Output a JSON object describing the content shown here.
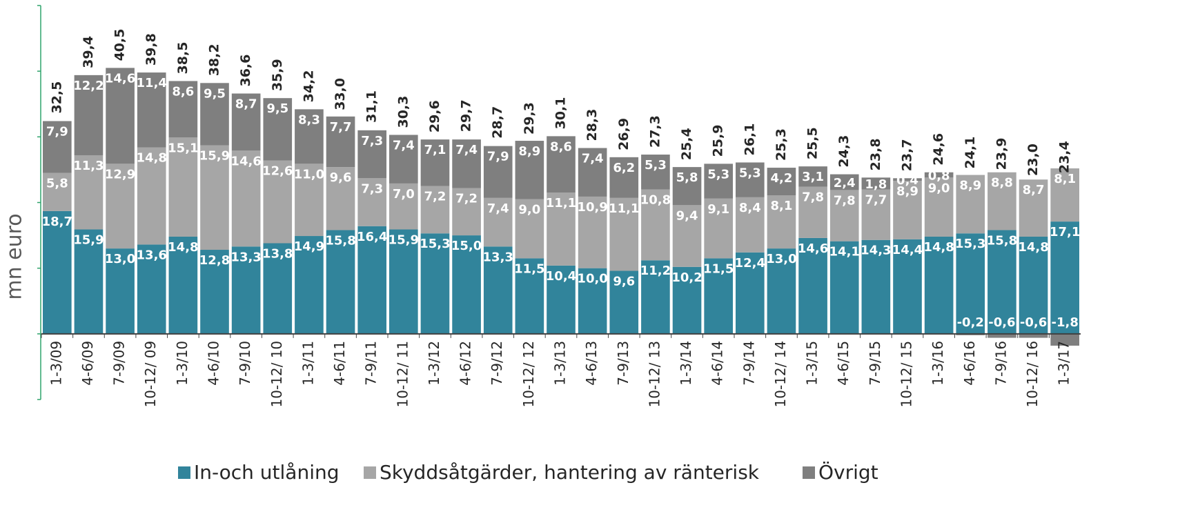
{
  "chart_data": {
    "type": "stacked_bar",
    "y_label": "mn euro",
    "categories": [
      "1-3/09",
      "4-6/09",
      "7-9/09",
      "10-12/ 09",
      "1-3/10",
      "4-6/10",
      "7-9/10",
      "10-12/ 10",
      "1-3/11",
      "4-6/11",
      "7-9/11",
      "10-12/ 11",
      "1-3/12",
      "4-6/12",
      "7-9/12",
      "10-12/ 12",
      "1-3/13",
      "4-6/13",
      "7-9/13",
      "10-12/ 13",
      "1-3/14",
      "4-6/14",
      "7-9/14",
      "10-12/ 14",
      "1-3/15",
      "4-6/15",
      "7-9/15",
      "10-12/ 15",
      "1-3/16",
      "4-6/16",
      "7-9/16",
      "10-12/ 16",
      "1-3/17"
    ],
    "series": [
      {
        "name": "In-och utlåning",
        "color": "#31849b",
        "values": [
          18.7,
          15.9,
          13.0,
          13.6,
          14.8,
          12.8,
          13.3,
          13.8,
          14.9,
          15.8,
          16.4,
          15.9,
          15.3,
          15.0,
          13.3,
          11.5,
          10.4,
          10.0,
          9.6,
          11.2,
          10.2,
          11.5,
          12.4,
          13.0,
          14.6,
          14.1,
          14.3,
          14.4,
          14.8,
          15.3,
          15.8,
          14.8,
          17.1
        ],
        "value_labels": [
          "18,7",
          "15,9",
          "13,0",
          "13,6",
          "14,8",
          "12,8",
          "13,3",
          "13,8",
          "14,9",
          "15,8",
          "16,4",
          "15,9",
          "15,3",
          "15,0",
          "13,3",
          "11,5",
          "10,4",
          "10,0",
          "9,6",
          "11,2",
          "10,2",
          "11,5",
          "12,4",
          "13,0",
          "14,6",
          "14,1",
          "14,3",
          "14,4",
          "14,8",
          "15,3",
          "15,8",
          "14,8",
          "17,1"
        ]
      },
      {
        "name": "Skyddsåtgärder, hantering av ränterisk",
        "color": "#a6a6a6",
        "values": [
          5.8,
          11.3,
          12.9,
          14.8,
          15.1,
          15.9,
          14.6,
          12.6,
          11.0,
          9.6,
          7.3,
          7.0,
          7.2,
          7.2,
          7.4,
          9.0,
          11.1,
          10.9,
          11.1,
          10.8,
          9.4,
          9.1,
          8.4,
          8.1,
          7.8,
          7.8,
          7.7,
          8.9,
          9.0,
          8.9,
          8.8,
          8.7,
          8.1
        ],
        "value_labels": [
          "5,8",
          "11,3",
          "12,9",
          "14,8",
          "15,1",
          "15,9",
          "14,6",
          "12,6",
          "11,0",
          "9,6",
          "7,3",
          "7,0",
          "7,2",
          "7,2",
          "7,4",
          "9,0",
          "11,1",
          "10,9",
          "11,1",
          "10,8",
          "9,4",
          "9,1",
          "8,4",
          "8,1",
          "7,8",
          "7,8",
          "7,7",
          "8,9",
          "9,0",
          "8,9",
          "8,8",
          "8,7",
          "8,1"
        ]
      },
      {
        "name": "Övrigt",
        "color": "#7f7f7f",
        "values": [
          7.9,
          12.2,
          14.6,
          11.4,
          8.6,
          9.5,
          8.7,
          9.5,
          8.3,
          7.7,
          7.3,
          7.4,
          7.1,
          7.4,
          7.9,
          8.9,
          8.6,
          7.4,
          6.2,
          5.3,
          5.8,
          5.3,
          5.3,
          4.2,
          3.1,
          2.4,
          1.8,
          0.4,
          0.8,
          -0.2,
          -0.6,
          -0.6,
          -1.8
        ],
        "value_labels": [
          "7,9",
          "12,2",
          "14,6",
          "11,4",
          "8,6",
          "9,5",
          "8,7",
          "9,5",
          "8,3",
          "7,7",
          "7,3",
          "7,4",
          "7,1",
          "7,4",
          "7,9",
          "8,9",
          "8,6",
          "7,4",
          "6,2",
          "5,3",
          "5,8",
          "5,3",
          "5,3",
          "4,2",
          "3,1",
          "2,4",
          "1,8",
          "0,4",
          "0,8",
          "-0,2",
          "-0,6",
          "-0,6",
          "-1,8"
        ]
      }
    ],
    "totals": [
      32.5,
      39.4,
      40.5,
      39.8,
      38.5,
      38.2,
      36.6,
      35.9,
      34.2,
      33.0,
      31.1,
      30.3,
      29.6,
      29.7,
      28.7,
      29.3,
      30.1,
      28.3,
      26.9,
      27.3,
      25.4,
      25.9,
      26.1,
      25.3,
      25.5,
      24.3,
      23.8,
      23.7,
      24.6,
      24.1,
      23.9,
      23.0,
      23.4
    ],
    "total_labels": [
      "32,5",
      "39,4",
      "40,5",
      "39,8",
      "38,5",
      "38,2",
      "36,6",
      "35,9",
      "34,2",
      "33,0",
      "31,1",
      "30,3",
      "29,6",
      "29,7",
      "28,7",
      "29,3",
      "30,1",
      "28,3",
      "26,9",
      "27,3",
      "25,4",
      "25,9",
      "26,1",
      "25,3",
      "25,5",
      "24,3",
      "23,8",
      "23,7",
      "24,6",
      "24,1",
      "23,9",
      "23,0",
      "23,4"
    ],
    "ylim": [
      -10,
      50
    ],
    "yticks": [
      -10,
      0,
      10,
      20,
      30,
      40,
      50
    ],
    "legend": "bottom"
  }
}
